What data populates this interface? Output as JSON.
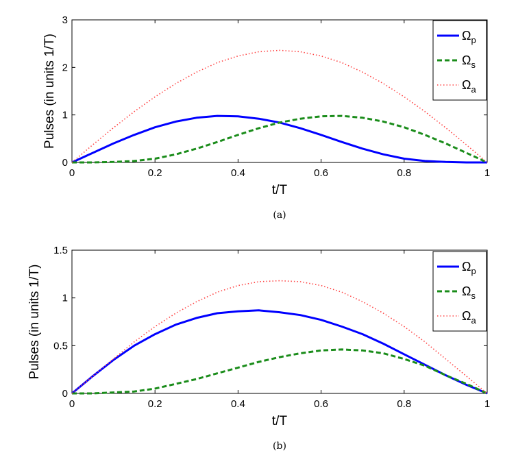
{
  "chart_data": [
    {
      "type": "line",
      "caption": "(a)",
      "xlabel": "t/T",
      "ylabel": "Pulses (in units 1/T)",
      "xlim": [
        0,
        1
      ],
      "ylim": [
        0,
        3
      ],
      "xticks": [
        "0",
        "0.2",
        "0.4",
        "0.6",
        "0.8",
        "1"
      ],
      "yticks": [
        "0",
        "1",
        "2",
        "3"
      ],
      "legend_position": "top-right",
      "series": [
        {
          "name": "Ω_p",
          "symbol": "Ω",
          "sub": "p",
          "style": "solid",
          "color": "#0000ff",
          "x": [
            0,
            0.05,
            0.1,
            0.15,
            0.2,
            0.25,
            0.3,
            0.35,
            0.4,
            0.45,
            0.5,
            0.55,
            0.6,
            0.65,
            0.7,
            0.75,
            0.8,
            0.85,
            0.9,
            0.95,
            1
          ],
          "y": [
            0,
            0.2,
            0.4,
            0.58,
            0.74,
            0.86,
            0.94,
            0.98,
            0.97,
            0.92,
            0.84,
            0.72,
            0.58,
            0.43,
            0.29,
            0.17,
            0.08,
            0.03,
            0.01,
            0,
            0
          ]
        },
        {
          "name": "Ω_s",
          "symbol": "Ω",
          "sub": "s",
          "style": "dashed",
          "color": "#1a8c1a",
          "x": [
            0,
            0.05,
            0.1,
            0.15,
            0.2,
            0.25,
            0.3,
            0.35,
            0.4,
            0.45,
            0.5,
            0.55,
            0.6,
            0.65,
            0.7,
            0.75,
            0.8,
            0.85,
            0.9,
            0.95,
            1
          ],
          "y": [
            0,
            0,
            0.01,
            0.03,
            0.08,
            0.17,
            0.29,
            0.43,
            0.58,
            0.72,
            0.84,
            0.92,
            0.97,
            0.98,
            0.94,
            0.86,
            0.74,
            0.58,
            0.4,
            0.2,
            0
          ]
        },
        {
          "name": "Ω_a",
          "symbol": "Ω",
          "sub": "a",
          "style": "dotted",
          "color": "#ff4444",
          "x": [
            0,
            0.05,
            0.1,
            0.15,
            0.2,
            0.25,
            0.3,
            0.35,
            0.4,
            0.45,
            0.5,
            0.55,
            0.6,
            0.65,
            0.7,
            0.75,
            0.8,
            0.85,
            0.9,
            0.95,
            1
          ],
          "y": [
            0,
            0.37,
            0.73,
            1.07,
            1.38,
            1.66,
            1.9,
            2.1,
            2.24,
            2.33,
            2.36,
            2.33,
            2.24,
            2.1,
            1.9,
            1.66,
            1.38,
            1.07,
            0.73,
            0.37,
            0
          ]
        }
      ]
    },
    {
      "type": "line",
      "caption": "(b)",
      "xlabel": "t/T",
      "ylabel": "Pulses (in units 1/T)",
      "xlim": [
        0,
        1
      ],
      "ylim": [
        0,
        1.5
      ],
      "xticks": [
        "0",
        "0.2",
        "0.4",
        "0.6",
        "0.8",
        "1"
      ],
      "yticks": [
        "0",
        "0.5",
        "1",
        "1.5"
      ],
      "legend_position": "top-right",
      "series": [
        {
          "name": "Ω_p",
          "symbol": "Ω",
          "sub": "p",
          "style": "solid",
          "color": "#0000ff",
          "x": [
            0,
            0.05,
            0.1,
            0.15,
            0.2,
            0.25,
            0.3,
            0.35,
            0.4,
            0.45,
            0.5,
            0.55,
            0.6,
            0.65,
            0.7,
            0.75,
            0.8,
            0.85,
            0.9,
            0.95,
            1
          ],
          "y": [
            0,
            0.18,
            0.35,
            0.5,
            0.62,
            0.72,
            0.79,
            0.84,
            0.86,
            0.87,
            0.85,
            0.82,
            0.77,
            0.7,
            0.62,
            0.52,
            0.41,
            0.3,
            0.19,
            0.09,
            0
          ]
        },
        {
          "name": "Ω_s",
          "symbol": "Ω",
          "sub": "s",
          "style": "dashed",
          "color": "#1a8c1a",
          "x": [
            0,
            0.05,
            0.1,
            0.15,
            0.2,
            0.25,
            0.3,
            0.35,
            0.4,
            0.45,
            0.5,
            0.55,
            0.6,
            0.65,
            0.7,
            0.75,
            0.8,
            0.85,
            0.9,
            0.95,
            1
          ],
          "y": [
            0,
            0,
            0.01,
            0.02,
            0.05,
            0.1,
            0.15,
            0.21,
            0.27,
            0.33,
            0.38,
            0.42,
            0.45,
            0.46,
            0.45,
            0.42,
            0.36,
            0.29,
            0.19,
            0.1,
            0
          ]
        },
        {
          "name": "Ω_a",
          "symbol": "Ω",
          "sub": "a",
          "style": "dotted",
          "color": "#ff4444",
          "x": [
            0,
            0.05,
            0.1,
            0.15,
            0.2,
            0.25,
            0.3,
            0.35,
            0.4,
            0.45,
            0.5,
            0.55,
            0.6,
            0.65,
            0.7,
            0.75,
            0.8,
            0.85,
            0.9,
            0.95,
            1
          ],
          "y": [
            0,
            0.18,
            0.36,
            0.54,
            0.7,
            0.84,
            0.96,
            1.06,
            1.13,
            1.17,
            1.18,
            1.17,
            1.13,
            1.06,
            0.96,
            0.84,
            0.7,
            0.54,
            0.36,
            0.18,
            0
          ]
        }
      ]
    }
  ]
}
